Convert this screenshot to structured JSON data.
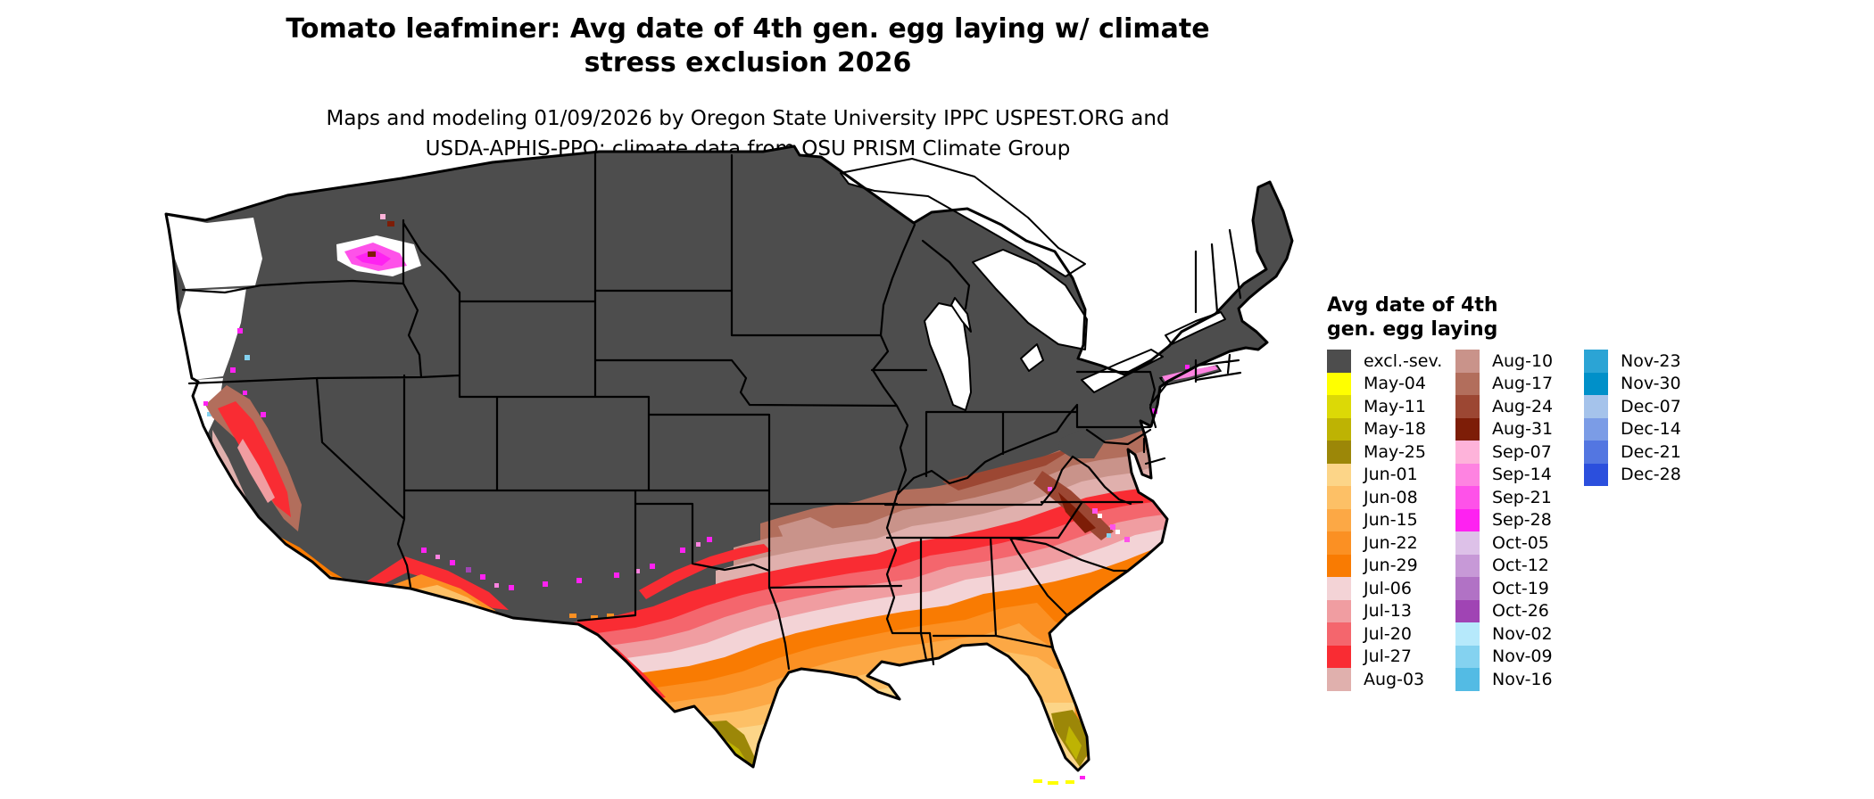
{
  "header": {
    "title_line1": "Tomato leafminer: Avg date of 4th gen. egg laying w/ climate",
    "title_line2": "stress exclusion 2026",
    "subtitle_line1": "Maps and modeling 01/09/2026 by Oregon State University IPPC USPEST.ORG and",
    "subtitle_line2": "USDA-APHIS-PPQ; climate data from OSU PRISM Climate Group"
  },
  "legend": {
    "title_line1": "Avg date of 4th",
    "title_line2": "gen. egg laying",
    "columns": [
      {
        "items": [
          {
            "label": "excl.-sev.",
            "color": "#4d4d4d"
          },
          {
            "label": "May-04",
            "color": "#ffff00"
          },
          {
            "label": "May-11",
            "color": "#dcd906"
          },
          {
            "label": "May-18",
            "color": "#beb303"
          },
          {
            "label": "May-25",
            "color": "#9c8708"
          },
          {
            "label": "Jun-01",
            "color": "#fcd588"
          },
          {
            "label": "Jun-08",
            "color": "#fdc066"
          },
          {
            "label": "Jun-15",
            "color": "#fca845"
          },
          {
            "label": "Jun-22",
            "color": "#fb9023"
          },
          {
            "label": "Jun-29",
            "color": "#f97b02"
          },
          {
            "label": "Jul-06",
            "color": "#f3d3d6"
          },
          {
            "label": "Jul-13",
            "color": "#f09da1"
          },
          {
            "label": "Jul-20",
            "color": "#f4666d"
          },
          {
            "label": "Jul-27",
            "color": "#f92c33"
          },
          {
            "label": "Aug-03",
            "color": "#e0b0ad"
          }
        ]
      },
      {
        "items": [
          {
            "label": "Aug-10",
            "color": "#c9938a"
          },
          {
            "label": "Aug-17",
            "color": "#b26e5c"
          },
          {
            "label": "Aug-24",
            "color": "#9c4733"
          },
          {
            "label": "Aug-31",
            "color": "#7d1d07"
          },
          {
            "label": "Sep-07",
            "color": "#feb3da"
          },
          {
            "label": "Sep-14",
            "color": "#fe83e1"
          },
          {
            "label": "Sep-21",
            "color": "#fe52e9"
          },
          {
            "label": "Sep-28",
            "color": "#fe22f1"
          },
          {
            "label": "Oct-05",
            "color": "#ddc1e8"
          },
          {
            "label": "Oct-12",
            "color": "#c799d7"
          },
          {
            "label": "Oct-19",
            "color": "#b172c5"
          },
          {
            "label": "Oct-26",
            "color": "#a044b4"
          },
          {
            "label": "Nov-02",
            "color": "#b6e9fb"
          },
          {
            "label": "Nov-09",
            "color": "#84d2f0"
          },
          {
            "label": "Nov-16",
            "color": "#53bbe4"
          }
        ]
      },
      {
        "items": [
          {
            "label": "Nov-23",
            "color": "#2ba4d5"
          },
          {
            "label": "Nov-30",
            "color": "#0090c9"
          },
          {
            "label": "Dec-07",
            "color": "#a5c3eb"
          },
          {
            "label": "Dec-14",
            "color": "#7b9ce6"
          },
          {
            "label": "Dec-21",
            "color": "#5376e1"
          },
          {
            "label": "Dec-28",
            "color": "#2b4fdd"
          }
        ]
      }
    ]
  },
  "palette": {
    "excl": "#4d4d4d",
    "white_na": "#ffffff",
    "border": "#000000",
    "may04": "#ffff00",
    "may11": "#dcd906",
    "may18": "#beb303",
    "may25": "#9c8708",
    "jun01": "#fcd588",
    "jun08": "#fdc066",
    "jun15": "#fca845",
    "jun22": "#fb9023",
    "jun29": "#f97b02",
    "jul06": "#f3d3d6",
    "jul13": "#f09da1",
    "jul20": "#f4666d",
    "jul27": "#f92c33",
    "aug03": "#e0b0ad",
    "aug10": "#c9938a",
    "aug17": "#b26e5c",
    "aug24": "#9c4733",
    "aug31": "#7d1d07",
    "sep07": "#feb3da",
    "sep14": "#fe83e1",
    "sep21": "#fe52e9",
    "sep28": "#fe22f1",
    "oct05": "#ddc1e8",
    "oct12": "#c799d7",
    "oct19": "#b172c5",
    "oct26": "#a044b4",
    "nov02": "#b6e9fb",
    "nov09": "#84d2f0",
    "nov16": "#53bbe4",
    "nov23": "#2ba4d5",
    "nov30": "#0090c9",
    "dec07": "#a5c3eb",
    "dec14": "#7b9ce6",
    "dec21": "#5376e1",
    "dec28": "#2b4fdd"
  }
}
